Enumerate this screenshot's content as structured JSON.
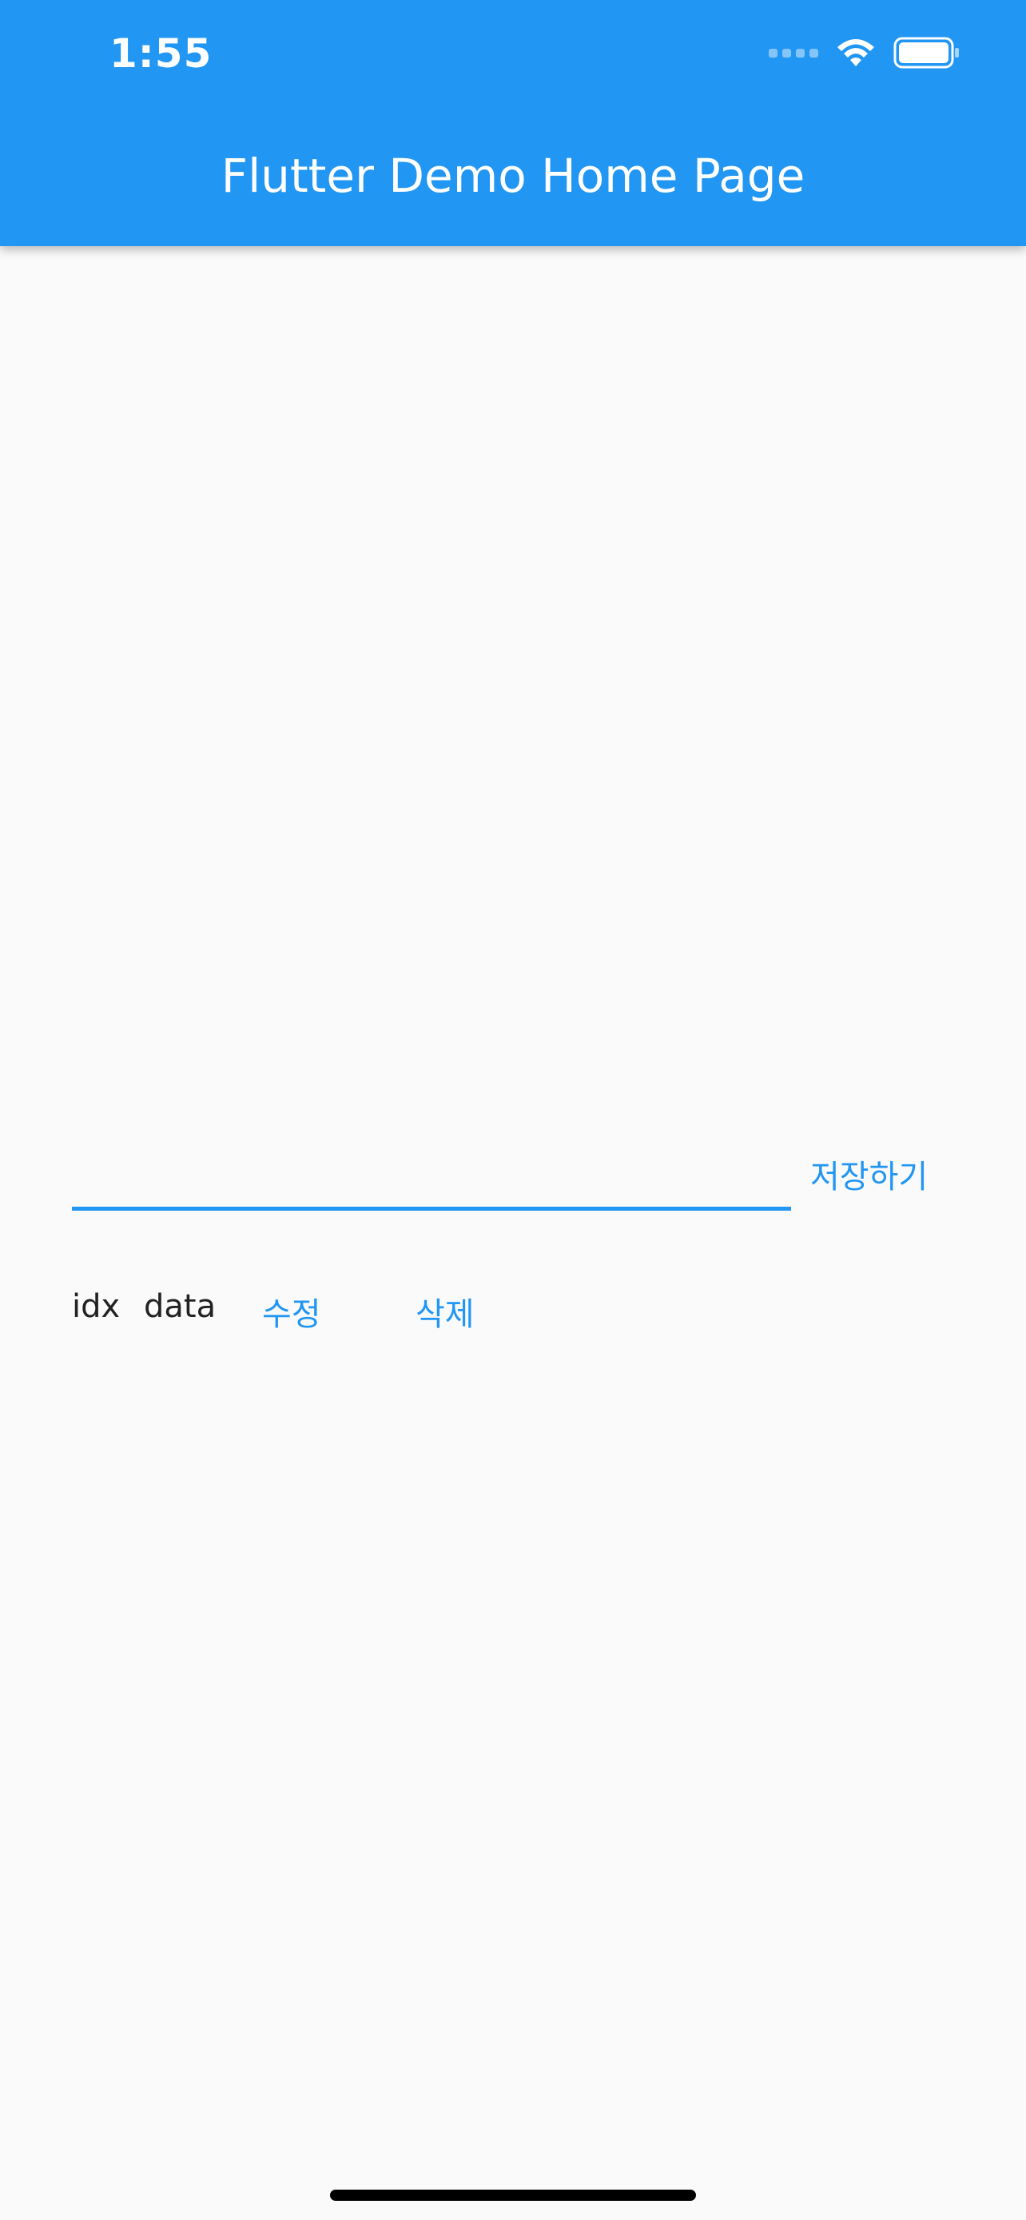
{
  "status_bar": {
    "time": "1:55",
    "icons": [
      "signal-icon",
      "wifi-icon",
      "battery-icon"
    ]
  },
  "app_bar": {
    "title": "Flutter Demo Home Page",
    "color": "#2196f3"
  },
  "form": {
    "input_value": "",
    "input_placeholder": "",
    "save_label": "저장하기"
  },
  "rows": [
    {
      "idx": "idx",
      "data": "data",
      "edit_label": "수정",
      "delete_label": "삭제"
    }
  ],
  "colors": {
    "accent": "#2196f3",
    "background": "#fafafa",
    "text": "#222222"
  }
}
